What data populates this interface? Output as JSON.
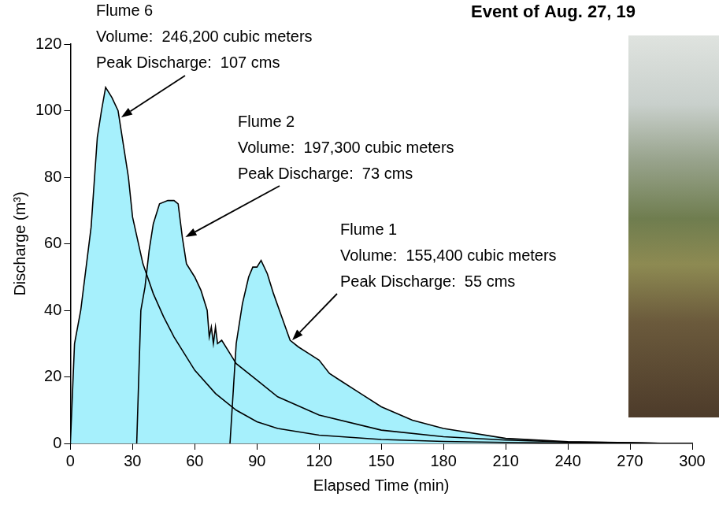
{
  "chart_data": {
    "type": "area",
    "title": "Event of Aug. 27, 19",
    "x_label": "Elapsed Time (min)",
    "y_label": "Discharge (m³)",
    "xlim": [
      0,
      300
    ],
    "xticks": [
      0,
      30,
      60,
      90,
      120,
      150,
      180,
      210,
      240,
      270,
      300
    ],
    "ylim": [
      0,
      120
    ],
    "yticks": [
      0,
      20,
      40,
      60,
      80,
      100,
      120
    ],
    "grid": false,
    "series": [
      {
        "name": "Flume 6",
        "color": "#a6f0fc",
        "annotation": [
          "Volume:  246,200 cubic meters",
          "Peak Discharge:  107 cms"
        ],
        "x": [
          0,
          2,
          5,
          10,
          13,
          15,
          17,
          20,
          23,
          26,
          28,
          30,
          35,
          40,
          45,
          50,
          60,
          70,
          80,
          90,
          100,
          120,
          150,
          180,
          210,
          240,
          270
        ],
        "values": [
          0,
          30,
          40,
          65,
          92,
          100,
          107,
          104,
          100,
          88,
          80,
          68,
          54,
          45,
          38,
          32,
          22,
          15,
          10,
          6.5,
          4.5,
          2.5,
          1.2,
          0.6,
          0.3,
          0.1,
          0
        ]
      },
      {
        "name": "Flume 2",
        "color": "#a6f0fc",
        "annotation": [
          "Volume:  197,300 cubic meters",
          "Peak Discharge:  73 cms"
        ],
        "x": [
          32,
          33,
          34,
          36,
          38,
          40,
          43,
          47,
          50,
          52,
          54,
          56,
          60,
          63,
          66,
          67,
          68,
          69,
          70,
          71,
          73,
          76,
          80,
          90,
          100,
          120,
          150,
          180,
          210,
          240,
          270,
          288
        ],
        "values": [
          0,
          20,
          40,
          47,
          58,
          66,
          72,
          73,
          73,
          72,
          62,
          54,
          50,
          46,
          40,
          32,
          35,
          30,
          35,
          30,
          31,
          28,
          24,
          19,
          14,
          8.5,
          4,
          2,
          1,
          0.4,
          0.2,
          0
        ]
      },
      {
        "name": "Flume 1",
        "color": "#a6f0fc",
        "annotation": [
          "Volume:  155,400 cubic meters",
          "Peak Discharge:  55 cms"
        ],
        "x": [
          77,
          80,
          83,
          86,
          88,
          90,
          92,
          95,
          98,
          102,
          106,
          110,
          115,
          120,
          125,
          130,
          140,
          150,
          165,
          180,
          210,
          240,
          270,
          290
        ],
        "values": [
          0,
          30,
          42,
          50,
          53,
          53,
          55,
          51,
          45,
          38,
          31,
          29,
          27,
          25,
          21,
          19,
          15,
          11,
          7,
          4.5,
          1.5,
          0.5,
          0.2,
          0
        ]
      }
    ]
  }
}
